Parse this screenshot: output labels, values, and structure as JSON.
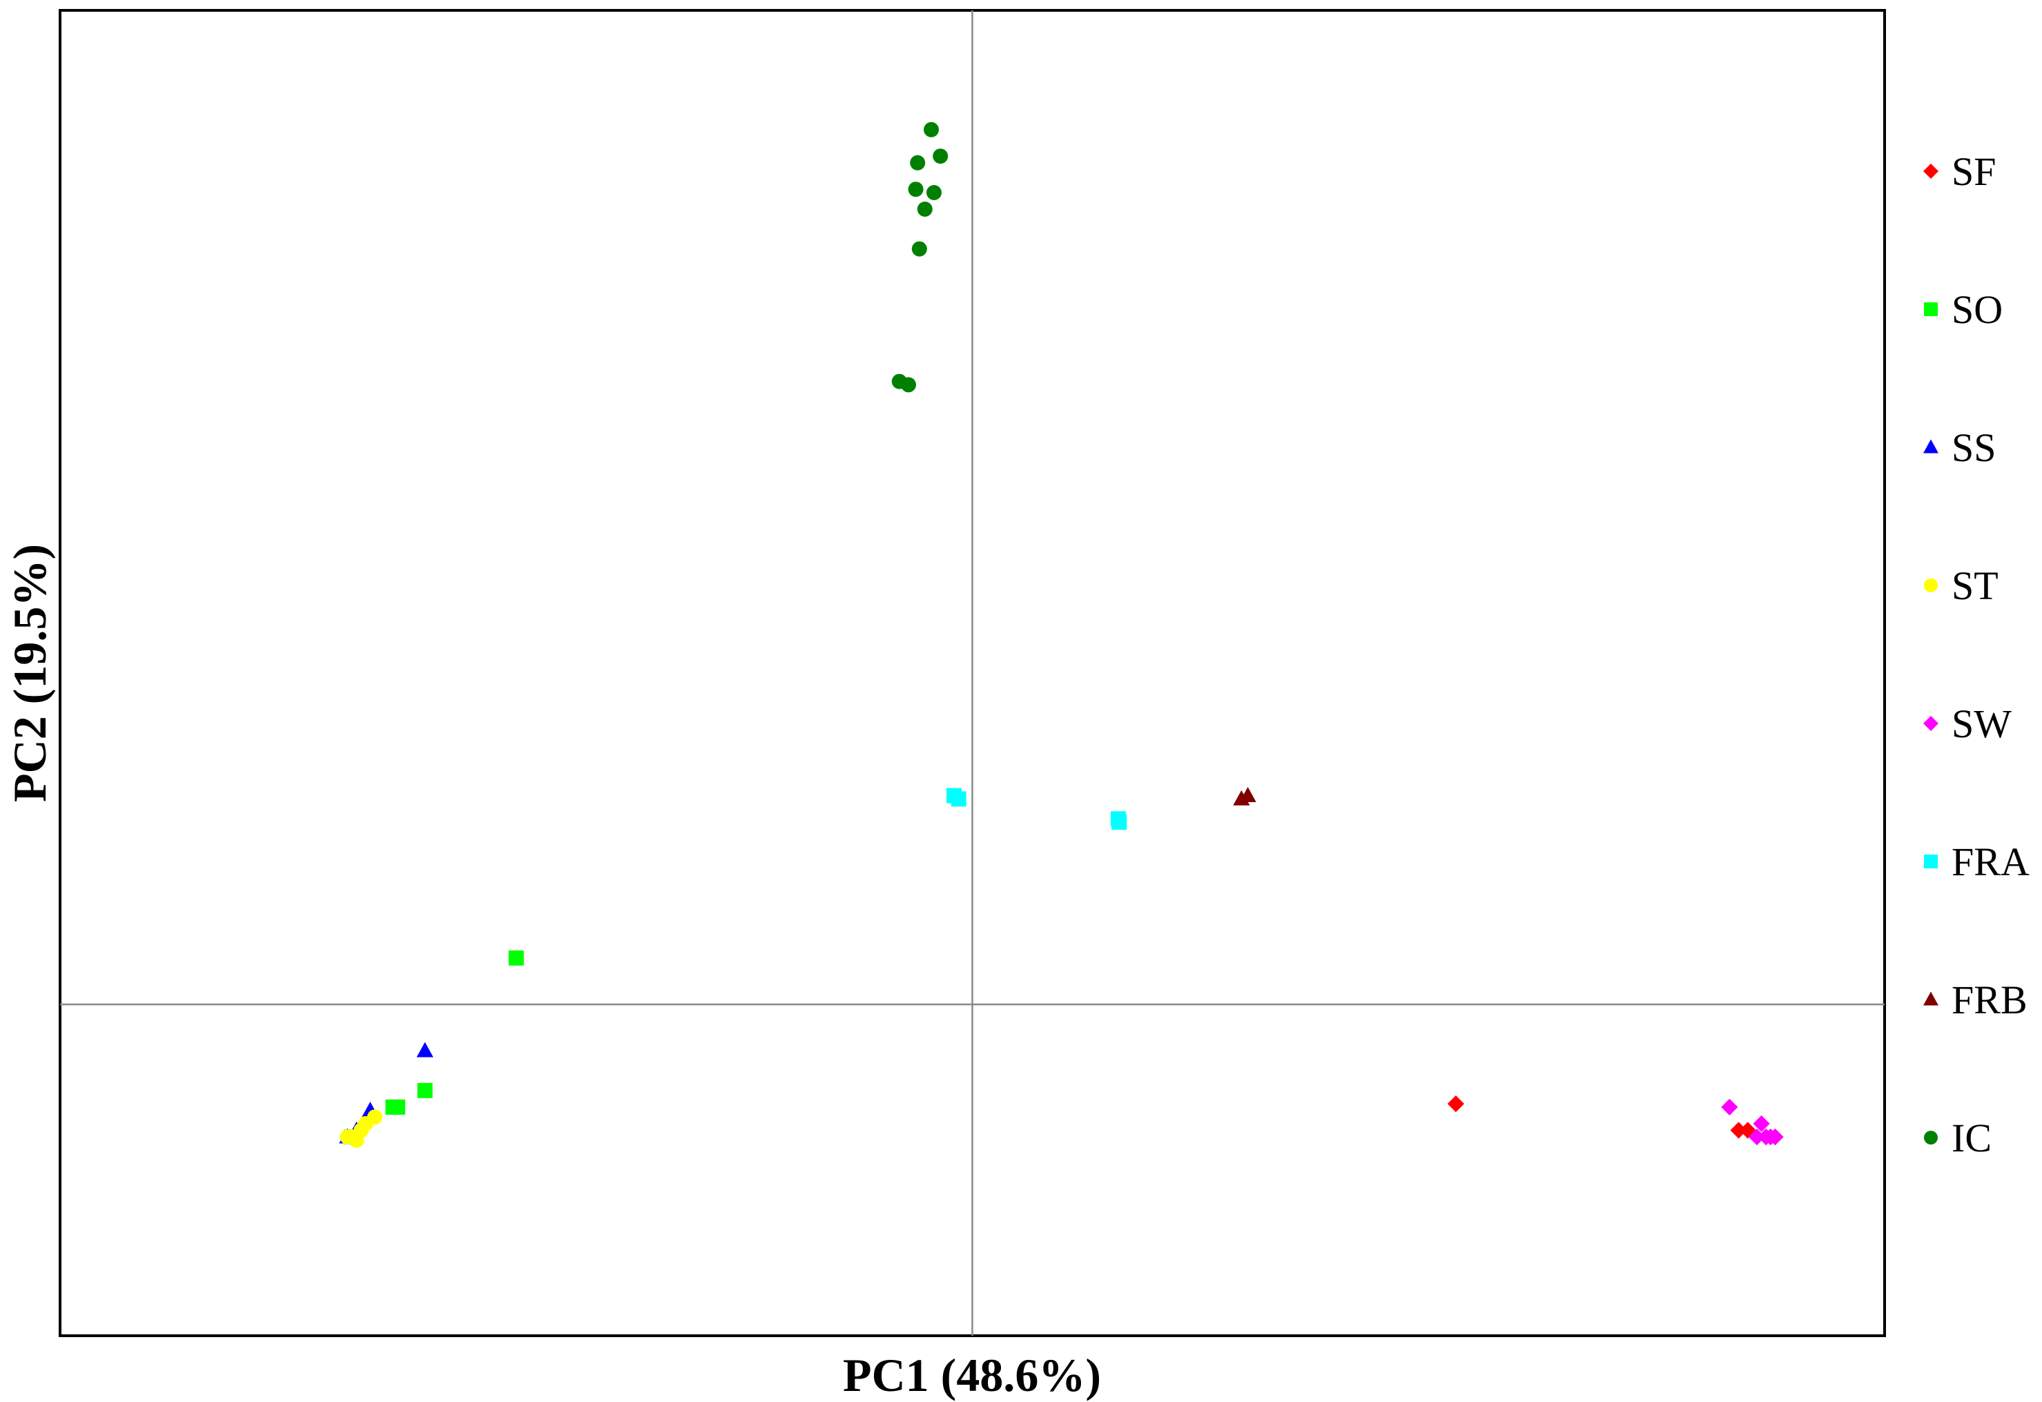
{
  "chart_data": {
    "type": "scatter",
    "xlabel": "PC1 (48.6%)",
    "ylabel": "PC2 (19.5%)",
    "xlim": [
      -1.0,
      1.0
    ],
    "ylim": [
      -0.5,
      1.5
    ],
    "grid": false,
    "zero_lines": true,
    "legend_position": "right",
    "series": [
      {
        "name": "SF",
        "marker": "diamond",
        "color": "#ff0000",
        "points": [
          [
            0.53,
            -0.15
          ],
          [
            0.84,
            -0.19
          ],
          [
            0.85,
            -0.19
          ],
          [
            0.87,
            -0.2
          ],
          [
            0.88,
            -0.2
          ]
        ]
      },
      {
        "name": "SO",
        "marker": "square",
        "color": "#00ff00",
        "points": [
          [
            -0.5,
            0.07
          ],
          [
            -0.6,
            -0.13
          ],
          [
            -0.63,
            -0.155
          ],
          [
            -0.635,
            -0.155
          ],
          [
            -0.68,
            -0.2
          ]
        ]
      },
      {
        "name": "SS",
        "marker": "triangle",
        "color": "#0000ff",
        "points": [
          [
            -0.6,
            -0.07
          ],
          [
            -0.66,
            -0.16
          ],
          [
            -0.675,
            -0.19
          ],
          [
            -0.685,
            -0.2
          ]
        ]
      },
      {
        "name": "ST",
        "marker": "circle",
        "color": "#ffff00",
        "points": [
          [
            -0.655,
            -0.17
          ],
          [
            -0.665,
            -0.18
          ],
          [
            -0.67,
            -0.19
          ],
          [
            -0.68,
            -0.2
          ],
          [
            -0.685,
            -0.2
          ],
          [
            -0.675,
            -0.205
          ]
        ]
      },
      {
        "name": "SW",
        "marker": "diamond",
        "color": "#ff00ff",
        "points": [
          [
            0.83,
            -0.155
          ],
          [
            0.865,
            -0.18
          ],
          [
            0.86,
            -0.2
          ],
          [
            0.87,
            -0.2
          ],
          [
            0.875,
            -0.2
          ],
          [
            0.88,
            -0.2
          ]
        ]
      },
      {
        "name": "FRA",
        "marker": "square",
        "color": "#00ffff",
        "points": [
          [
            -0.02,
            0.315
          ],
          [
            -0.015,
            0.31
          ],
          [
            0.16,
            0.28
          ],
          [
            0.161,
            0.275
          ]
        ]
      },
      {
        "name": "FRB",
        "marker": "triangle",
        "color": "#800000",
        "points": [
          [
            0.295,
            0.31
          ],
          [
            0.302,
            0.315
          ]
        ]
      },
      {
        "name": "IC",
        "marker": "circle",
        "color": "#008000",
        "points": [
          [
            -0.045,
            1.32
          ],
          [
            -0.06,
            1.27
          ],
          [
            -0.035,
            1.28
          ],
          [
            -0.062,
            1.23
          ],
          [
            -0.042,
            1.225
          ],
          [
            -0.052,
            1.2
          ],
          [
            -0.058,
            1.14
          ],
          [
            -0.08,
            0.94
          ],
          [
            -0.07,
            0.935
          ]
        ]
      }
    ]
  }
}
